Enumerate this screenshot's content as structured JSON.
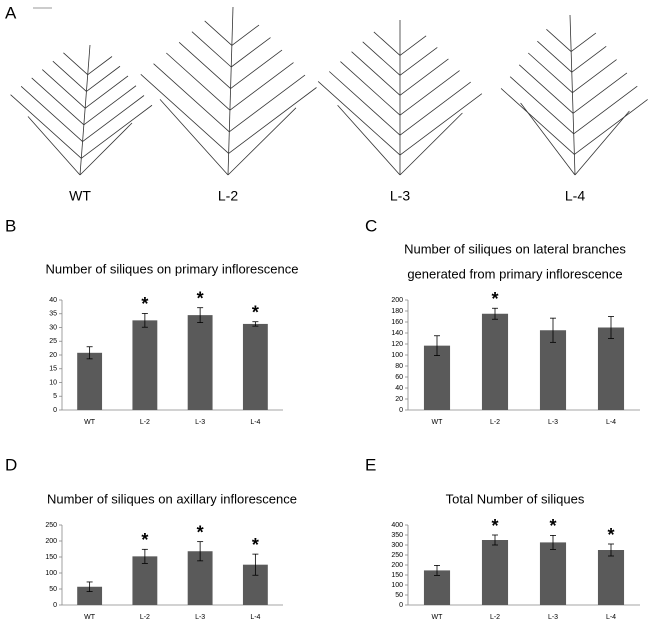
{
  "panel_a": {
    "letter": "A",
    "labels": [
      "WT",
      "L-2",
      "L-3",
      "L-4"
    ]
  },
  "chart_data": [
    {
      "type": "bar",
      "panel_label": "B",
      "title": [
        "Number of siliques on primary inflorescence"
      ],
      "categories": [
        "WT",
        "L-2",
        "L-3",
        "L-4"
      ],
      "values": [
        20.8,
        32.6,
        34.5,
        31.3
      ],
      "errors": [
        2.2,
        2.5,
        2.7,
        0.8
      ],
      "significance": [
        null,
        "*",
        "*",
        "*"
      ],
      "color": "#5a5a5a",
      "ylim": [
        0,
        40
      ],
      "yticks": [
        0,
        5,
        10,
        15,
        20,
        25,
        30,
        35,
        40
      ]
    },
    {
      "type": "bar",
      "panel_label": "C",
      "title": [
        "Number of siliques on lateral branches",
        "generated from primary inflorescence"
      ],
      "categories": [
        "WT",
        "L-2",
        "L-3",
        "L-4"
      ],
      "values": [
        117,
        175,
        145,
        150
      ],
      "errors": [
        18,
        10,
        22,
        20
      ],
      "significance": [
        null,
        "*",
        null,
        null
      ],
      "color": "#5a5a5a",
      "ylim": [
        0,
        200
      ],
      "yticks": [
        0,
        20,
        40,
        60,
        80,
        100,
        120,
        140,
        160,
        180,
        200
      ]
    },
    {
      "type": "bar",
      "panel_label": "D",
      "title": [
        "Number of siliques on axillary inflorescence"
      ],
      "categories": [
        "WT",
        "L-2",
        "L-3",
        "L-4"
      ],
      "values": [
        57,
        152,
        168,
        126
      ],
      "errors": [
        15,
        22,
        30,
        33
      ],
      "significance": [
        null,
        "*",
        "*",
        "*"
      ],
      "color": "#5a5a5a",
      "ylim": [
        0,
        250
      ],
      "yticks": [
        0,
        50,
        100,
        150,
        200,
        250
      ]
    },
    {
      "type": "bar",
      "panel_label": "E",
      "title": [
        "Total Number of siliques"
      ],
      "categories": [
        "WT",
        "L-2",
        "L-3",
        "L-4"
      ],
      "values": [
        173,
        325,
        313,
        275
      ],
      "errors": [
        25,
        25,
        35,
        30
      ],
      "significance": [
        null,
        "*",
        "*",
        "*"
      ],
      "color": "#5a5a5a",
      "ylim": [
        0,
        400
      ],
      "yticks": [
        0,
        50,
        100,
        150,
        200,
        250,
        300,
        350,
        400
      ]
    }
  ]
}
